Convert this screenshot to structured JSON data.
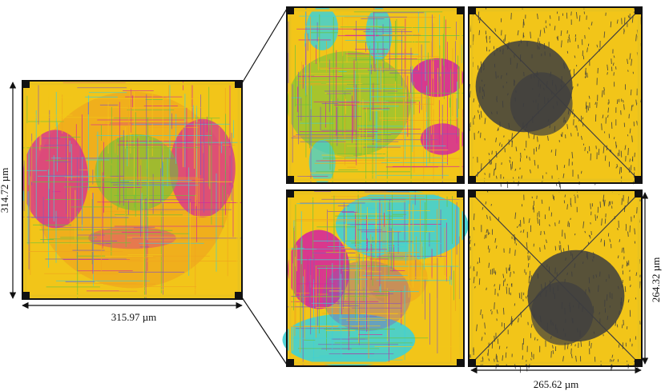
{
  "dimensions": {
    "left_height": "314.72 µm",
    "left_width": "315.97 µm",
    "right_height": "264.32 µm",
    "right_width": "265.62 µm"
  },
  "panels": [
    {
      "id": "full-chip-routing",
      "style": "routing-mixed"
    },
    {
      "id": "zoom-top-left",
      "style": "routing-green-magenta"
    },
    {
      "id": "zoom-top-right",
      "style": "density-yellow-gray"
    },
    {
      "id": "zoom-bottom-left",
      "style": "routing-cyan-magenta"
    },
    {
      "id": "zoom-bottom-right",
      "style": "density-yellow-gray"
    }
  ],
  "colors": {
    "frame": "#111111",
    "ring": "#e9c21f",
    "yellow": "#f2c519",
    "orange": "#f0a51e",
    "magenta": "#d6289a",
    "cyan": "#3fd0d6",
    "green": "#6ac23c",
    "gray": "#3d3d40",
    "purple": "#8a5bb5"
  }
}
